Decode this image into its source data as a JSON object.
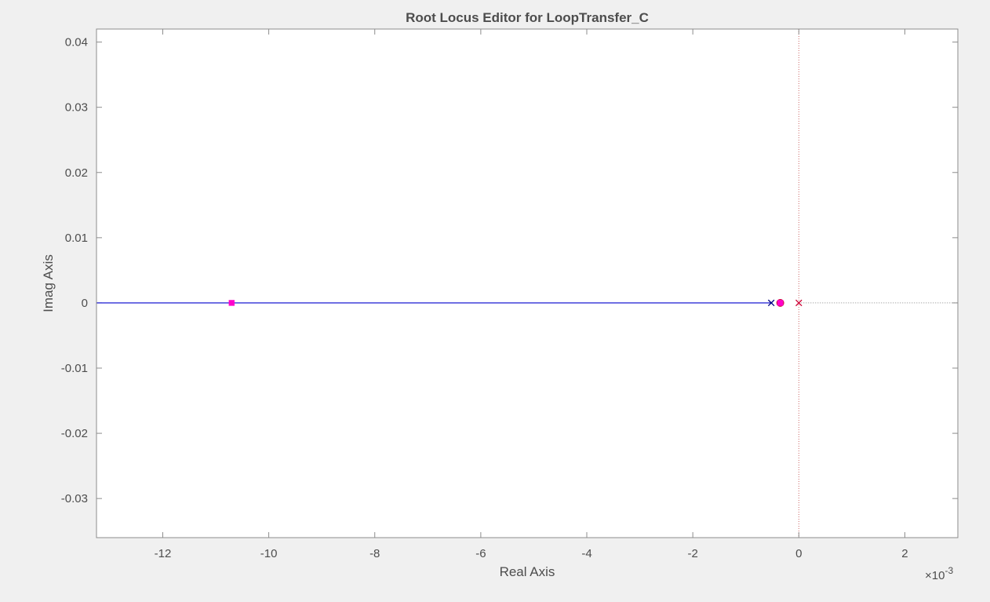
{
  "chart_data": {
    "type": "scatter",
    "title": "Root Locus Editor for LoopTransfer_C",
    "xlabel": "Real Axis",
    "ylabel": "Imag Axis",
    "x_exponent_label": "×10",
    "x_exponent_power": "-3",
    "x_scale": 0.001,
    "xlim": [
      -13.25,
      3.0
    ],
    "ylim": [
      -0.036,
      0.042
    ],
    "x_ticks": [
      -12,
      -10,
      -8,
      -6,
      -4,
      -2,
      0,
      2
    ],
    "x_tick_labels": [
      "-12",
      "-10",
      "-8",
      "-6",
      "-4",
      "-2",
      "0",
      "2"
    ],
    "y_ticks": [
      0.04,
      0.03,
      0.02,
      0.01,
      0,
      -0.01,
      -0.02,
      -0.03
    ],
    "y_tick_labels": [
      "0.04",
      "0.03",
      "0.02",
      "0.01",
      "0",
      "-0.01",
      "-0.02",
      "-0.03"
    ],
    "grid": false,
    "colors": {
      "background": "#f0f0f0",
      "axes_face": "#ffffff",
      "axes_edge": "#8c8c8c",
      "text": "#4d4d4d",
      "locus": "#0000cd",
      "closed_loop": "#ff00cc",
      "open_loop_pole": "#cc0033",
      "reference": "#cc6666"
    },
    "series": [
      {
        "kind": "locus",
        "points": [
          {
            "x": -13.25,
            "y": 0
          },
          {
            "x": -0.5,
            "y": 0
          }
        ]
      },
      {
        "kind": "open-loop-pole",
        "marker": "x",
        "color": "#000080",
        "points": [
          {
            "x": -0.52,
            "y": 0
          }
        ]
      },
      {
        "kind": "open-loop-pole",
        "marker": "x",
        "color": "#cc0033",
        "points": [
          {
            "x": 0.0,
            "y": 0
          }
        ]
      },
      {
        "kind": "zero",
        "marker": "o",
        "color": "#cc0033",
        "points": [
          {
            "x": -0.35,
            "y": 0
          }
        ]
      },
      {
        "kind": "closed-loop-pole",
        "marker": "s",
        "color": "#ff00cc",
        "points": [
          {
            "x": -10.7,
            "y": 0
          },
          {
            "x": -0.35,
            "y": 0
          }
        ]
      }
    ]
  }
}
